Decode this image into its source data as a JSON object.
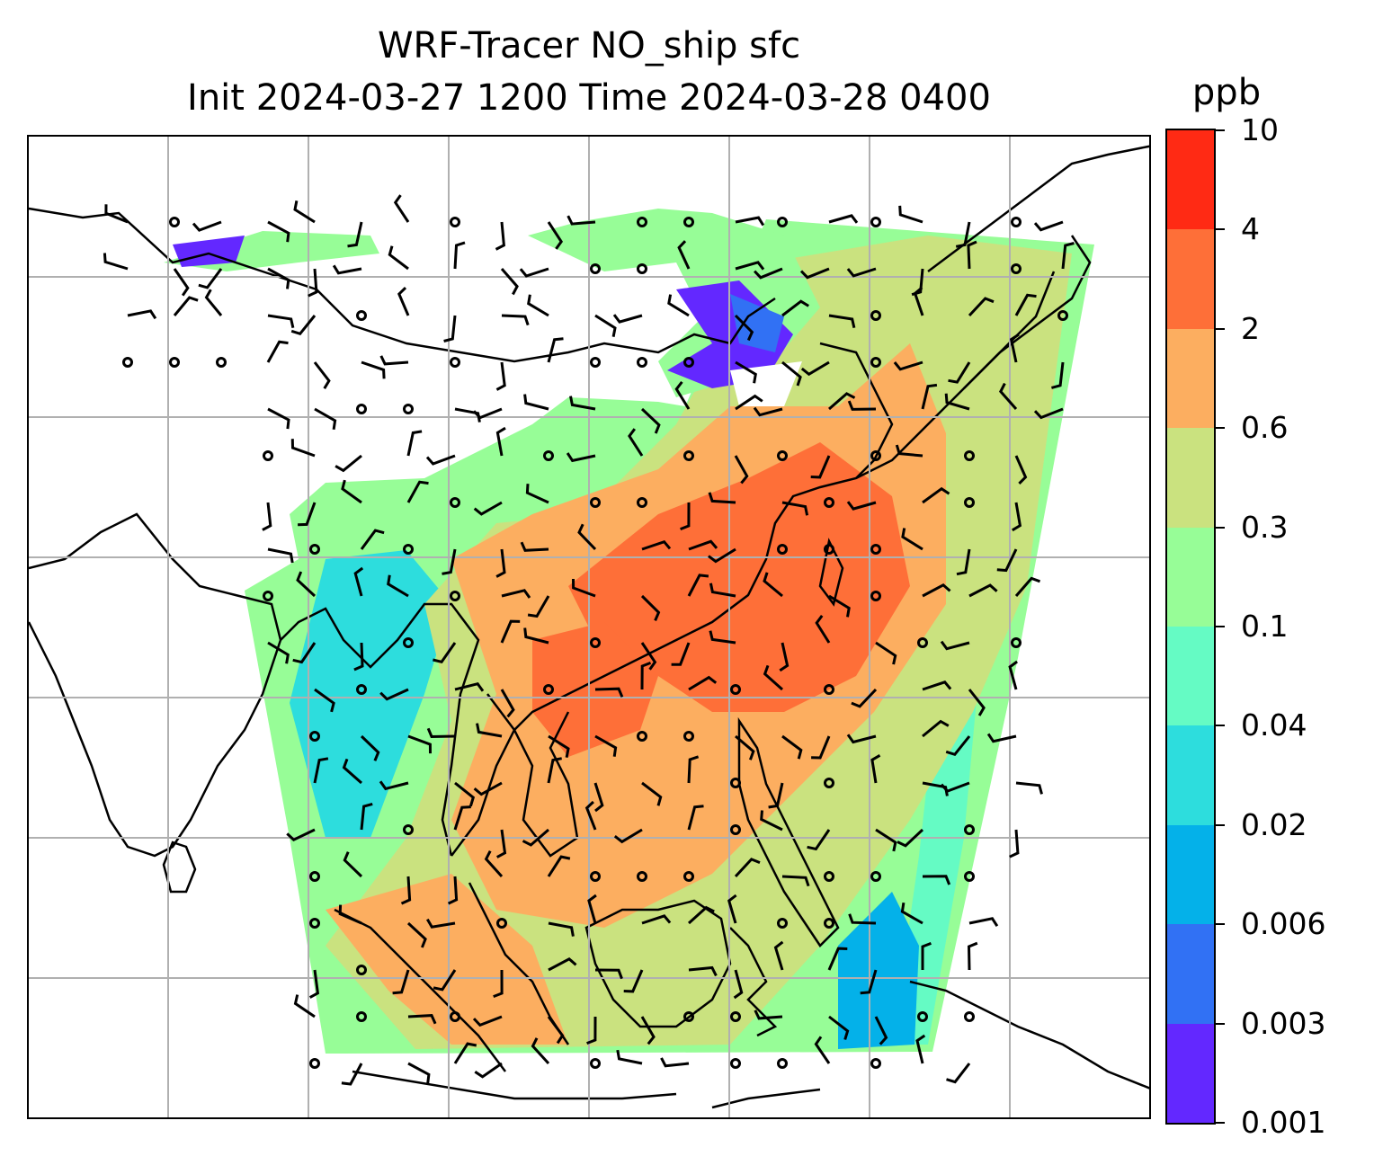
{
  "title": {
    "line1": "WRF-Tracer NO_ship sfc",
    "line2": "Init 2024-03-27 1200 Time 2024-03-28 0400"
  },
  "colorbar": {
    "unit": "ppb",
    "levels": [
      "0.001",
      "0.003",
      "0.006",
      "0.02",
      "0.04",
      "0.1",
      "0.3",
      "0.6",
      "2",
      "4",
      "10"
    ],
    "colors": [
      "#6328ff",
      "#3171f4",
      "#04b1e9",
      "#2ddddd",
      "#65fbc4",
      "#97fd97",
      "#cae27f",
      "#fcae60",
      "#fe6f38",
      "#ff2a14"
    ]
  },
  "map": {
    "gridlines": true,
    "wind_barbs": true,
    "coastlines": true
  }
}
